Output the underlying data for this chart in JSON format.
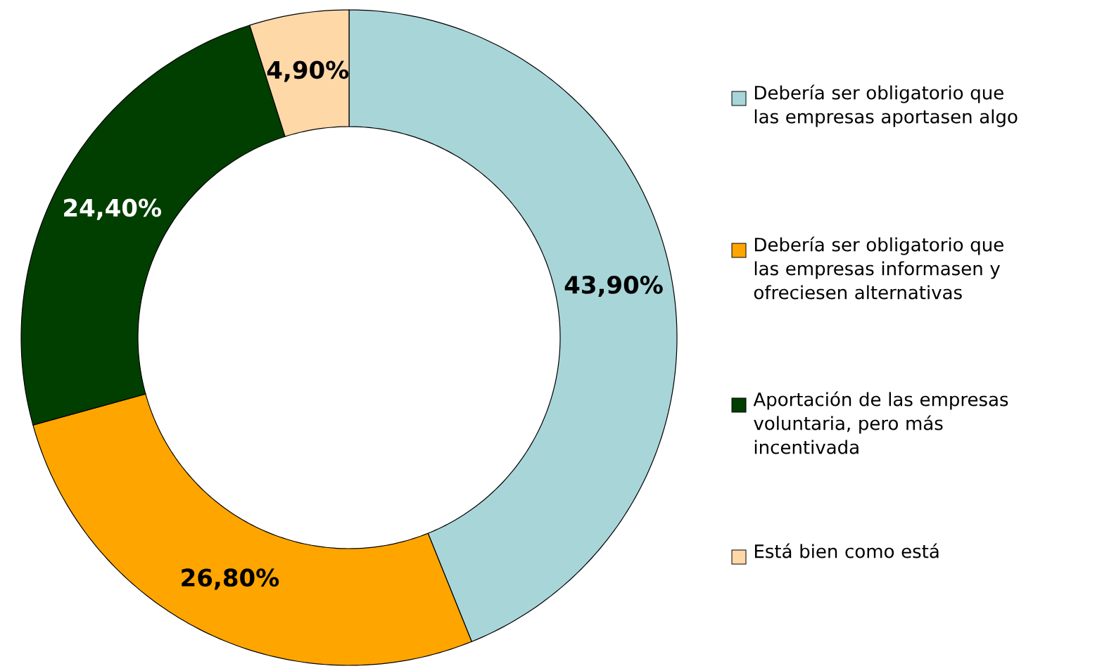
{
  "chart_data": {
    "type": "donut",
    "categories": [
      "Debería ser obligatorio que las empresas aportasen algo",
      "Debería ser obligatorio que las empresas informasen y ofreciesen alternativas",
      "Aportación de las empresas voluntaria, pero más incentivada",
      "Está bien como está"
    ],
    "values": [
      43.9,
      26.8,
      24.4,
      4.9
    ],
    "colors": [
      "#a8d5d8",
      "#ffa500",
      "#003f00",
      "#ffd8a8"
    ],
    "value_labels": [
      "43,90%",
      "26,80%",
      "24,40%",
      "4,90%"
    ],
    "legend": "right"
  }
}
